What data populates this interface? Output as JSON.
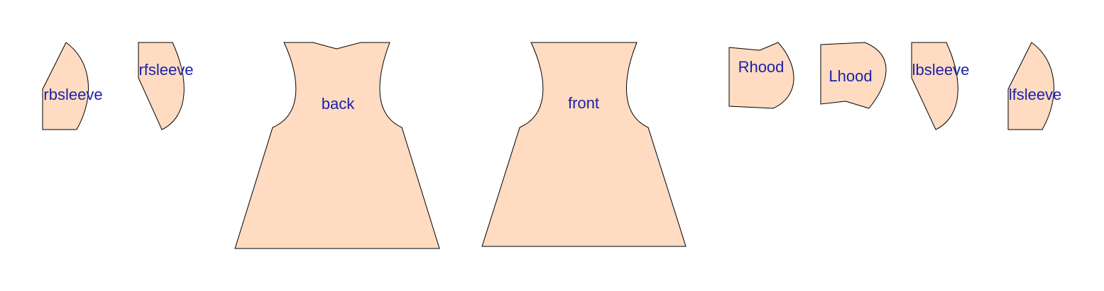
{
  "diagram": {
    "piece_fill": "#FFDBC1",
    "label_color": "#1B22AA",
    "pieces": [
      {
        "id": "rbsleeve",
        "label": "rbsleeve"
      },
      {
        "id": "rfsleeve",
        "label": "rfsleeve"
      },
      {
        "id": "back",
        "label": "back"
      },
      {
        "id": "front",
        "label": "front"
      },
      {
        "id": "rhood",
        "label": "Rhood"
      },
      {
        "id": "lhood",
        "label": "Lhood"
      },
      {
        "id": "lbsleeve",
        "label": "lbsleeve"
      },
      {
        "id": "lfsleeve",
        "label": "lfsleeve"
      }
    ]
  }
}
